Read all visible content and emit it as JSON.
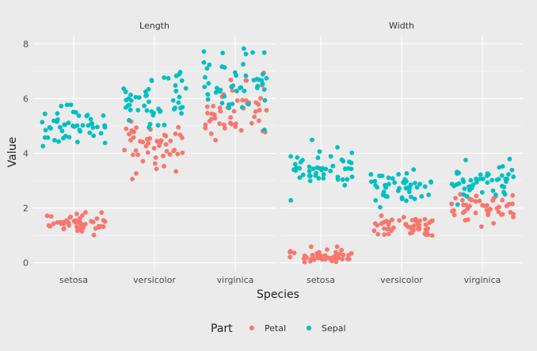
{
  "chart_data": {
    "type": "scatter",
    "xlabel": "Species",
    "ylabel": "Value",
    "ylim": [
      -0.3,
      8.3
    ],
    "yticks": [
      0,
      2,
      4,
      6,
      8
    ],
    "categories": [
      "setosa",
      "versicolor",
      "virginica"
    ],
    "facets": [
      {
        "name": "Length",
        "series": [
          {
            "name": "Petal",
            "color": "#f8766d",
            "points": {
              "setosa": [
                1.4,
                1.4,
                1.3,
                1.5,
                1.4,
                1.7,
                1.4,
                1.5,
                1.4,
                1.5,
                1.5,
                1.6,
                1.4,
                1.1,
                1.2,
                1.5,
                1.3,
                1.4,
                1.7,
                1.5,
                1.7,
                1.5,
                1.0,
                1.7,
                1.9,
                1.6,
                1.6,
                1.5,
                1.4,
                1.6,
                1.6,
                1.5,
                1.5,
                1.4,
                1.5,
                1.2,
                1.3,
                1.4,
                1.3,
                1.5,
                1.3,
                1.3,
                1.3,
                1.6,
                1.9,
                1.4,
                1.6,
                1.4,
                1.5,
                1.4
              ],
              "versicolor": [
                4.7,
                4.5,
                4.9,
                4.0,
                4.6,
                4.5,
                4.7,
                3.3,
                4.6,
                3.9,
                3.5,
                4.2,
                4.0,
                4.7,
                3.6,
                4.4,
                4.5,
                4.1,
                4.5,
                3.9,
                4.8,
                4.0,
                4.9,
                4.7,
                4.3,
                4.4,
                4.8,
                5.0,
                4.5,
                3.5,
                3.8,
                3.7,
                3.9,
                5.1,
                4.5,
                4.5,
                4.7,
                4.4,
                4.1,
                4.0,
                4.4,
                4.6,
                4.0,
                3.3,
                4.2,
                4.2,
                4.2,
                4.3,
                3.0,
                4.1
              ],
              "virginica": [
                6.0,
                5.1,
                5.9,
                5.6,
                5.8,
                6.6,
                4.5,
                6.3,
                5.8,
                6.1,
                5.1,
                5.3,
                5.5,
                5.0,
                5.1,
                5.3,
                5.5,
                6.7,
                6.9,
                5.0,
                5.7,
                4.9,
                6.7,
                4.9,
                5.7,
                6.0,
                4.8,
                4.9,
                5.6,
                5.8,
                6.1,
                6.4,
                5.6,
                5.1,
                5.6,
                6.1,
                5.6,
                5.5,
                4.8,
                5.4,
                5.6,
                5.1,
                5.1,
                5.9,
                5.7,
                5.2,
                5.0,
                5.2,
                5.4,
                5.1
              ]
            }
          },
          {
            "name": "Sepal",
            "color": "#00bfc4",
            "points": {
              "setosa": [
                5.1,
                4.9,
                4.7,
                4.6,
                5.0,
                5.4,
                4.6,
                5.0,
                4.4,
                4.9,
                5.4,
                4.8,
                4.8,
                4.3,
                5.8,
                5.7,
                5.4,
                5.1,
                5.7,
                5.1,
                5.4,
                5.1,
                4.6,
                5.1,
                4.8,
                5.0,
                5.0,
                5.2,
                5.2,
                4.7,
                4.8,
                5.4,
                5.2,
                5.5,
                4.9,
                5.0,
                5.5,
                4.9,
                4.4,
                5.1,
                5.0,
                4.5,
                4.4,
                5.0,
                5.1,
                4.8,
                5.1,
                4.6,
                5.3,
                5.0
              ],
              "versicolor": [
                7.0,
                6.4,
                6.9,
                5.5,
                6.5,
                5.7,
                6.3,
                4.9,
                6.6,
                5.2,
                5.0,
                5.9,
                6.0,
                6.1,
                5.6,
                6.7,
                5.6,
                5.8,
                6.2,
                5.6,
                5.9,
                6.1,
                6.3,
                6.1,
                6.4,
                6.6,
                6.8,
                6.7,
                6.0,
                5.7,
                5.5,
                5.5,
                5.8,
                6.0,
                5.4,
                6.0,
                6.7,
                6.3,
                5.6,
                5.5,
                5.5,
                6.1,
                5.8,
                5.0,
                5.6,
                5.7,
                5.7,
                6.2,
                5.1,
                5.7
              ],
              "virginica": [
                6.3,
                5.8,
                7.1,
                6.3,
                6.5,
                7.6,
                4.9,
                7.3,
                6.7,
                7.2,
                6.5,
                6.4,
                6.8,
                5.7,
                5.8,
                6.4,
                6.5,
                7.7,
                7.7,
                6.0,
                6.9,
                5.6,
                7.7,
                6.3,
                6.7,
                7.2,
                6.2,
                6.1,
                6.4,
                7.2,
                7.4,
                7.9,
                6.4,
                6.3,
                6.1,
                7.7,
                6.3,
                6.4,
                6.0,
                6.9,
                6.7,
                6.9,
                5.8,
                6.8,
                6.7,
                6.7,
                6.3,
                6.5,
                6.2,
                5.9
              ]
            }
          }
        ]
      },
      {
        "name": "Width",
        "series": [
          {
            "name": "Petal",
            "color": "#f8766d",
            "points": {
              "setosa": [
                0.2,
                0.2,
                0.2,
                0.2,
                0.2,
                0.4,
                0.3,
                0.2,
                0.2,
                0.1,
                0.2,
                0.2,
                0.1,
                0.1,
                0.2,
                0.4,
                0.4,
                0.3,
                0.3,
                0.3,
                0.2,
                0.4,
                0.2,
                0.5,
                0.2,
                0.2,
                0.4,
                0.2,
                0.2,
                0.2,
                0.2,
                0.4,
                0.1,
                0.2,
                0.2,
                0.2,
                0.2,
                0.1,
                0.2,
                0.2,
                0.3,
                0.3,
                0.2,
                0.6,
                0.4,
                0.3,
                0.2,
                0.2,
                0.2,
                0.2
              ],
              "versicolor": [
                1.4,
                1.5,
                1.5,
                1.3,
                1.5,
                1.3,
                1.6,
                1.0,
                1.3,
                1.4,
                1.0,
                1.5,
                1.0,
                1.4,
                1.3,
                1.4,
                1.5,
                1.0,
                1.5,
                1.1,
                1.8,
                1.3,
                1.5,
                1.2,
                1.3,
                1.4,
                1.4,
                1.7,
                1.5,
                1.0,
                1.1,
                1.0,
                1.2,
                1.6,
                1.5,
                1.6,
                1.5,
                1.3,
                1.3,
                1.3,
                1.2,
                1.4,
                1.2,
                1.0,
                1.3,
                1.2,
                1.3,
                1.3,
                1.1,
                1.3
              ],
              "virginica": [
                2.5,
                1.9,
                2.1,
                1.8,
                2.2,
                2.1,
                1.7,
                1.8,
                1.8,
                2.5,
                2.0,
                1.9,
                2.1,
                2.0,
                2.4,
                2.3,
                1.8,
                2.2,
                2.3,
                1.5,
                2.3,
                2.0,
                2.0,
                1.8,
                2.1,
                1.8,
                1.8,
                1.8,
                2.1,
                1.6,
                1.9,
                2.0,
                2.2,
                1.5,
                1.4,
                2.3,
                2.4,
                1.8,
                1.8,
                2.1,
                2.4,
                2.3,
                1.9,
                2.3,
                2.5,
                2.3,
                1.9,
                2.0,
                2.3,
                1.8
              ]
            }
          },
          {
            "name": "Sepal",
            "color": "#00bfc4",
            "points": {
              "setosa": [
                3.5,
                3.0,
                3.2,
                3.1,
                3.6,
                3.9,
                3.4,
                3.4,
                2.9,
                3.1,
                3.7,
                3.4,
                3.0,
                3.0,
                4.0,
                4.4,
                3.9,
                3.5,
                3.8,
                3.8,
                3.4,
                3.7,
                3.6,
                3.3,
                3.4,
                3.0,
                3.4,
                3.5,
                3.4,
                3.2,
                3.1,
                3.4,
                4.1,
                4.2,
                3.1,
                3.2,
                3.5,
                3.6,
                3.0,
                3.4,
                3.5,
                2.3,
                3.2,
                3.5,
                3.8,
                3.0,
                3.8,
                3.2,
                3.7,
                3.3
              ],
              "versicolor": [
                3.2,
                3.2,
                3.1,
                2.3,
                2.8,
                2.8,
                3.3,
                2.4,
                2.9,
                2.7,
                2.0,
                3.0,
                2.2,
                2.9,
                2.9,
                3.1,
                3.0,
                2.7,
                2.2,
                2.5,
                3.2,
                2.8,
                2.5,
                2.8,
                2.9,
                3.0,
                2.8,
                3.0,
                2.9,
                2.6,
                2.4,
                2.4,
                2.7,
                2.7,
                3.0,
                3.4,
                3.1,
                2.3,
                3.0,
                2.5,
                2.6,
                3.0,
                2.6,
                2.3,
                2.7,
                3.0,
                2.9,
                2.9,
                2.5,
                2.8
              ],
              "virginica": [
                3.3,
                2.7,
                3.0,
                2.9,
                3.0,
                3.0,
                2.5,
                2.9,
                2.5,
                3.6,
                3.2,
                2.7,
                3.0,
                2.5,
                2.8,
                3.2,
                3.0,
                3.8,
                2.6,
                2.2,
                3.2,
                2.8,
                2.8,
                2.7,
                3.3,
                3.2,
                2.8,
                3.0,
                2.8,
                3.0,
                2.8,
                3.8,
                2.8,
                2.8,
                2.6,
                3.0,
                3.4,
                3.1,
                3.0,
                3.1,
                3.1,
                3.1,
                2.7,
                3.2,
                3.3,
                3.0,
                2.5,
                3.0,
                3.4,
                3.0
              ]
            }
          }
        ]
      }
    ],
    "legend": {
      "title": "Part",
      "position": "bottom",
      "entries": [
        {
          "name": "Petal",
          "color": "#f8766d"
        },
        {
          "name": "Sepal",
          "color": "#00bfc4"
        }
      ]
    },
    "grid": true
  }
}
